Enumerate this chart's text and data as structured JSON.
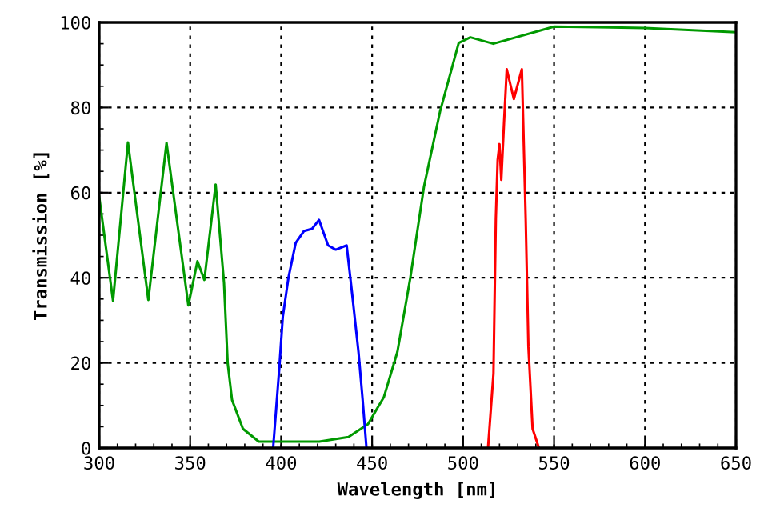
{
  "chart_data": {
    "type": "line",
    "xlabel": "Wavelength [nm]",
    "ylabel": "Transmission [%]",
    "xlim": [
      300,
      650
    ],
    "ylim": [
      0,
      100
    ],
    "xticks": [
      300,
      350,
      400,
      450,
      500,
      550,
      600,
      650
    ],
    "yticks": [
      0,
      20,
      40,
      60,
      80,
      100
    ],
    "grid": true,
    "legend": false,
    "line_style": "solid",
    "marker": "none",
    "series": [
      {
        "color": "#009900",
        "x": [
          300,
          307.6,
          315.8,
          327,
          337,
          349,
          354,
          357.8,
          364,
          368.6,
          370.6,
          373,
          379,
          387.7,
          421,
          437,
          447.7,
          456.5,
          463.9,
          471,
          478.5,
          487.3,
          497.6,
          504,
          516.6,
          550,
          600,
          650
        ],
        "values": [
          59,
          34.6,
          71.8,
          34.8,
          71.7,
          33.5,
          43.9,
          39.5,
          61.9,
          38.8,
          20,
          11.3,
          4.5,
          1.5,
          1.5,
          2.6,
          5.6,
          12,
          22.6,
          40,
          61.4,
          79,
          95.2,
          96.5,
          95,
          99,
          98.7,
          97.7
        ]
      },
      {
        "color": "#0000ff",
        "x": [
          395.6,
          399,
          400.9,
          404,
          408,
          412.6,
          417,
          420.8,
          425.8,
          430,
          436,
          439,
          442.5,
          444.8,
          446.9
        ],
        "values": [
          0,
          18.8,
          30.8,
          40,
          48.2,
          51,
          51.5,
          53.6,
          47.6,
          46.6,
          47.6,
          36.3,
          22.6,
          11.3,
          0
        ]
      },
      {
        "color": "#ff0000",
        "x": [
          513.7,
          516.7,
          518,
          519,
          520,
          521,
          522.5,
          524,
          527.9,
          532.3,
          534.4,
          535.9,
          538.2,
          541.7
        ],
        "values": [
          0,
          17.5,
          53.9,
          67.7,
          71.4,
          63,
          76.4,
          89,
          82,
          89,
          54,
          23.8,
          4.5,
          0
        ]
      }
    ]
  }
}
